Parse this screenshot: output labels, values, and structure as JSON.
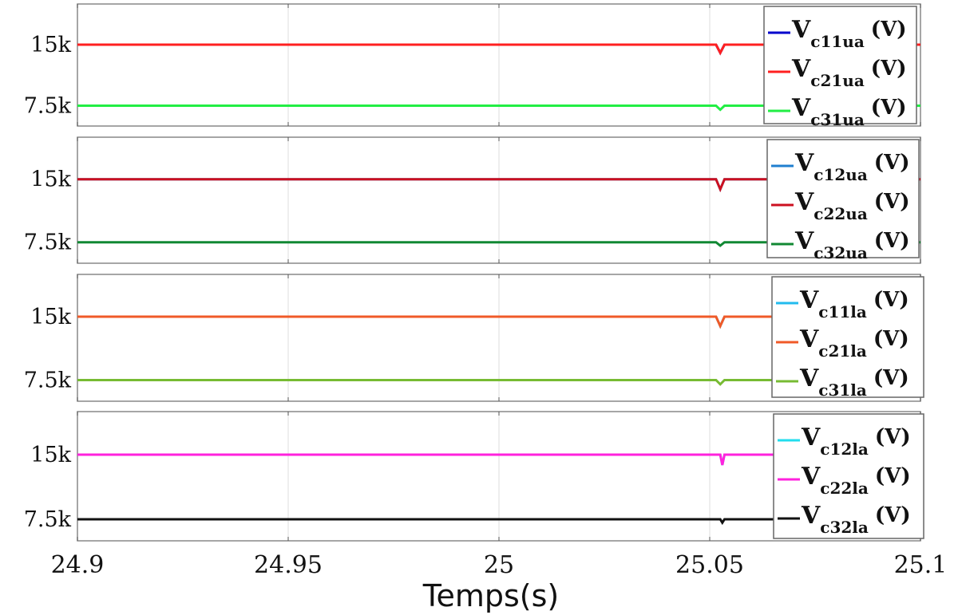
{
  "chart_data": {
    "type": "line",
    "xlabel": "Temps(s)",
    "xlim": [
      24.9,
      25.1
    ],
    "x_ticks": [
      "24.9",
      "24.95",
      "25",
      "25.05",
      "25.1"
    ],
    "x_tick_values": [
      24.9,
      24.95,
      25,
      25.05,
      25.1
    ],
    "grid": "vertical lines only",
    "legend_placement": "top-right",
    "panels": [
      {
        "ylim": [
          5000,
          20000
        ],
        "y_ticks": [
          "15k",
          "7.5k"
        ],
        "y_tick_values": [
          15000,
          7500
        ],
        "series": [
          {
            "name": "Vc11ua (V)",
            "label_main": "V",
            "label_sub": "c11ua",
            "label_unit": "(V)",
            "color": "#0000cc",
            "x": [
              24.9,
              25.0515,
              25.0525,
              25.0535,
              25.1
            ],
            "y": [
              15000,
              15000,
              14000,
              15000,
              15000
            ]
          },
          {
            "name": "Vc21ua (V)",
            "label_main": "V",
            "label_sub": "c21ua",
            "label_unit": "(V)",
            "color": "#ff2020",
            "x": [
              24.9,
              25.0515,
              25.0525,
              25.0535,
              25.1
            ],
            "y": [
              15000,
              15000,
              14000,
              15000,
              15000
            ]
          },
          {
            "name": "Vc31ua (V)",
            "label_main": "V",
            "label_sub": "c31ua",
            "label_unit": "(V)",
            "color": "#22ee44",
            "x": [
              24.9,
              25.0515,
              25.0525,
              25.0535,
              25.1
            ],
            "y": [
              7500,
              7500,
              7000,
              7500,
              7500
            ]
          }
        ]
      },
      {
        "ylim": [
          5000,
          20000
        ],
        "y_ticks": [
          "15k",
          "7.5k"
        ],
        "y_tick_values": [
          15000,
          7500
        ],
        "series": [
          {
            "name": "Vc12ua (V)",
            "label_main": "V",
            "label_sub": "c12ua",
            "label_unit": "(V)",
            "color": "#1f7fcf",
            "x": [
              24.9,
              25.0515,
              25.0525,
              25.0535,
              25.1
            ],
            "y": [
              15000,
              15000,
              13800,
              15000,
              15000
            ]
          },
          {
            "name": "Vc22ua (V)",
            "label_main": "V",
            "label_sub": "c22ua",
            "label_unit": "(V)",
            "color": "#cc1020",
            "x": [
              24.9,
              25.0515,
              25.0525,
              25.0535,
              25.1
            ],
            "y": [
              15000,
              15000,
              13800,
              15000,
              15000
            ]
          },
          {
            "name": "Vc32ua (V)",
            "label_main": "V",
            "label_sub": "c32ua",
            "label_unit": "(V)",
            "color": "#118833",
            "x": [
              24.9,
              25.0515,
              25.0525,
              25.0535,
              25.1
            ],
            "y": [
              7500,
              7500,
              7100,
              7500,
              7500
            ]
          }
        ]
      },
      {
        "ylim": [
          5000,
          20000
        ],
        "y_ticks": [
          "15k",
          "7.5k"
        ],
        "y_tick_values": [
          15000,
          7500
        ],
        "series": [
          {
            "name": "Vc11la (V)",
            "label_main": "V",
            "label_sub": "c11la",
            "label_unit": "(V)",
            "color": "#22bbee",
            "x": [
              24.9,
              25.0515,
              25.0525,
              25.0535,
              25.1
            ],
            "y": [
              15000,
              15000,
              13900,
              15000,
              15000
            ]
          },
          {
            "name": "Vc21la (V)",
            "label_main": "V",
            "label_sub": "c21la",
            "label_unit": "(V)",
            "color": "#f05a28",
            "x": [
              24.9,
              25.0515,
              25.0525,
              25.0535,
              25.1
            ],
            "y": [
              15000,
              15000,
              13900,
              15000,
              15000
            ]
          },
          {
            "name": "Vc31la (V)",
            "label_main": "V",
            "label_sub": "c31la",
            "label_unit": "(V)",
            "color": "#77bb33",
            "x": [
              24.9,
              25.0515,
              25.0525,
              25.0535,
              25.1
            ],
            "y": [
              7500,
              7500,
              7000,
              7500,
              7500
            ]
          }
        ]
      },
      {
        "ylim": [
          5000,
          20000
        ],
        "y_ticks": [
          "15k",
          "7.5k"
        ],
        "y_tick_values": [
          15000,
          7500
        ],
        "series": [
          {
            "name": "Vc12la (V)",
            "label_main": "V",
            "label_sub": "c12la",
            "label_unit": "(V)",
            "color": "#22ddee",
            "x": [
              24.9,
              25.0525,
              25.053,
              25.0535,
              25.1
            ],
            "y": [
              15000,
              15000,
              13800,
              15000,
              15000
            ]
          },
          {
            "name": "Vc22la (V)",
            "label_main": "V",
            "label_sub": "c22la",
            "label_unit": "(V)",
            "color": "#ff22dd",
            "x": [
              24.9,
              25.0525,
              25.053,
              25.0535,
              25.1
            ],
            "y": [
              15000,
              15000,
              13800,
              15000,
              15000
            ]
          },
          {
            "name": "Vc32la (V)",
            "label_main": "V",
            "label_sub": "c32la",
            "label_unit": "(V)",
            "color": "#111111",
            "x": [
              24.9,
              25.0525,
              25.053,
              25.0535,
              25.1
            ],
            "y": [
              7500,
              7500,
              7100,
              7500,
              7500
            ]
          }
        ]
      }
    ]
  }
}
